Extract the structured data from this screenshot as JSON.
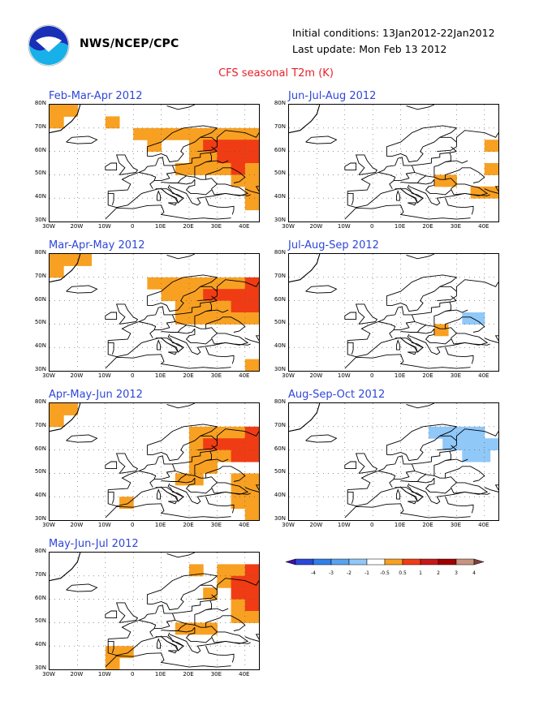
{
  "header": {
    "agency": "NWS/NCEP/CPC",
    "initial_conditions": "Initial conditions: 13Jan2012-22Jan2012",
    "last_update": "Last update: Mon Feb 13 2012",
    "title": "CFS seasonal T2m (K)",
    "logo_icon": "noaa-logo-icon"
  },
  "axes": {
    "lat_labels": [
      "80N",
      "70N",
      "60N",
      "50N",
      "40N",
      "30N"
    ],
    "lon_labels": [
      "30W",
      "20W",
      "10W",
      "0",
      "10E",
      "20E",
      "30E",
      "40E"
    ]
  },
  "colors": {
    "title": "#e8202a",
    "panel_title": "#2f47d8",
    "positive_0_5_1": "#f8a022",
    "positive_1_2": "#f03c14",
    "negative_0_5_1": "#90c8f8"
  },
  "panels": [
    {
      "title": "Feb-Mar-Apr 2012",
      "col": 0,
      "row": 0,
      "cells": [
        [
          -30,
          75,
          "o"
        ],
        [
          -30,
          70,
          "o"
        ],
        [
          -25,
          75,
          "o"
        ],
        [
          -10,
          70,
          "o"
        ],
        [
          0,
          65,
          "o"
        ],
        [
          5,
          65,
          "o"
        ],
        [
          10,
          65,
          "o"
        ],
        [
          15,
          65,
          "o"
        ],
        [
          5,
          60,
          "o"
        ],
        [
          20,
          65,
          "o"
        ],
        [
          25,
          65,
          "o"
        ],
        [
          30,
          65,
          "o"
        ],
        [
          35,
          65,
          "o"
        ],
        [
          40,
          65,
          "o"
        ],
        [
          20,
          60,
          "o"
        ],
        [
          25,
          60,
          "r"
        ],
        [
          30,
          60,
          "r"
        ],
        [
          35,
          60,
          "r"
        ],
        [
          40,
          60,
          "r"
        ],
        [
          20,
          55,
          "o"
        ],
        [
          25,
          55,
          "o"
        ],
        [
          30,
          55,
          "r"
        ],
        [
          35,
          55,
          "r"
        ],
        [
          40,
          55,
          "r"
        ],
        [
          15,
          50,
          "o"
        ],
        [
          20,
          50,
          "o"
        ],
        [
          25,
          50,
          "o"
        ],
        [
          30,
          50,
          "o"
        ],
        [
          35,
          50,
          "r"
        ],
        [
          40,
          50,
          "o"
        ],
        [
          35,
          45,
          "o"
        ],
        [
          40,
          45,
          "o"
        ],
        [
          40,
          35,
          "o"
        ],
        [
          40,
          40,
          "o"
        ]
      ]
    },
    {
      "title": "Jun-Jul-Aug 2012",
      "col": 1,
      "row": 0,
      "cells": [
        [
          40,
          60,
          "o"
        ],
        [
          40,
          50,
          "o"
        ],
        [
          22,
          45,
          "o"
        ],
        [
          25,
          45,
          "o"
        ],
        [
          35,
          40,
          "o"
        ],
        [
          40,
          40,
          "o"
        ]
      ]
    },
    {
      "title": "Mar-Apr-May 2012",
      "col": 0,
      "row": 1,
      "cells": [
        [
          -30,
          75,
          "o"
        ],
        [
          -25,
          75,
          "o"
        ],
        [
          -30,
          70,
          "o"
        ],
        [
          -20,
          75,
          "o"
        ],
        [
          5,
          65,
          "o"
        ],
        [
          10,
          65,
          "o"
        ],
        [
          15,
          65,
          "o"
        ],
        [
          20,
          65,
          "o"
        ],
        [
          25,
          65,
          "o"
        ],
        [
          30,
          65,
          "o"
        ],
        [
          35,
          65,
          "o"
        ],
        [
          40,
          65,
          "r"
        ],
        [
          15,
          60,
          "o"
        ],
        [
          20,
          60,
          "o"
        ],
        [
          25,
          60,
          "r"
        ],
        [
          30,
          60,
          "r"
        ],
        [
          35,
          60,
          "r"
        ],
        [
          40,
          60,
          "r"
        ],
        [
          15,
          55,
          "o"
        ],
        [
          20,
          55,
          "o"
        ],
        [
          25,
          55,
          "o"
        ],
        [
          30,
          55,
          "o"
        ],
        [
          35,
          55,
          "r"
        ],
        [
          40,
          55,
          "r"
        ],
        [
          15,
          50,
          "o"
        ],
        [
          20,
          50,
          "o"
        ],
        [
          25,
          50,
          "o"
        ],
        [
          30,
          50,
          "o"
        ],
        [
          35,
          50,
          "o"
        ],
        [
          40,
          50,
          "o"
        ],
        [
          10,
          60,
          "o"
        ],
        [
          40,
          30,
          "o"
        ]
      ]
    },
    {
      "title": "Jul-Aug-Sep 2012",
      "col": 1,
      "row": 1,
      "cells": [
        [
          32,
          50,
          "b"
        ],
        [
          35,
          50,
          "b"
        ],
        [
          22,
          45,
          "o"
        ]
      ]
    },
    {
      "title": "Apr-May-Jun 2012",
      "col": 0,
      "row": 2,
      "cells": [
        [
          -30,
          75,
          "o"
        ],
        [
          -25,
          75,
          "o"
        ],
        [
          -30,
          70,
          "o"
        ],
        [
          20,
          65,
          "o"
        ],
        [
          25,
          65,
          "o"
        ],
        [
          30,
          65,
          "o"
        ],
        [
          35,
          65,
          "o"
        ],
        [
          40,
          65,
          "r"
        ],
        [
          20,
          60,
          "o"
        ],
        [
          25,
          60,
          "r"
        ],
        [
          30,
          60,
          "r"
        ],
        [
          35,
          60,
          "r"
        ],
        [
          40,
          60,
          "r"
        ],
        [
          20,
          55,
          "o"
        ],
        [
          25,
          55,
          "o"
        ],
        [
          30,
          55,
          "o"
        ],
        [
          35,
          55,
          "r"
        ],
        [
          40,
          55,
          "r"
        ],
        [
          20,
          50,
          "o"
        ],
        [
          25,
          50,
          "o"
        ],
        [
          15,
          45,
          "o"
        ],
        [
          20,
          45,
          "o"
        ],
        [
          35,
          45,
          "o"
        ],
        [
          40,
          45,
          "o"
        ],
        [
          35,
          40,
          "o"
        ],
        [
          40,
          40,
          "o"
        ],
        [
          35,
          35,
          "o"
        ],
        [
          40,
          35,
          "o"
        ],
        [
          40,
          30,
          "o"
        ],
        [
          -5,
          35,
          "o"
        ]
      ]
    },
    {
      "title": "Aug-Sep-Oct 2012",
      "col": 1,
      "row": 2,
      "cells": [
        [
          20,
          65,
          "b"
        ],
        [
          25,
          65,
          "b"
        ],
        [
          30,
          65,
          "b"
        ],
        [
          35,
          65,
          "b"
        ],
        [
          25,
          60,
          "b"
        ],
        [
          30,
          60,
          "b"
        ],
        [
          35,
          60,
          "b"
        ],
        [
          40,
          60,
          "b"
        ],
        [
          32,
          55,
          "b"
        ],
        [
          37,
          55,
          "b"
        ]
      ]
    },
    {
      "title": "May-Jun-Jul 2012",
      "col": 0,
      "row": 3,
      "cells": [
        [
          20,
          70,
          "o"
        ],
        [
          30,
          70,
          "o"
        ],
        [
          35,
          70,
          "o"
        ],
        [
          40,
          70,
          "r"
        ],
        [
          30,
          65,
          "o"
        ],
        [
          35,
          65,
          "r"
        ],
        [
          40,
          65,
          "r"
        ],
        [
          35,
          60,
          "r"
        ],
        [
          40,
          60,
          "r"
        ],
        [
          25,
          60,
          "o"
        ],
        [
          35,
          55,
          "o"
        ],
        [
          40,
          55,
          "r"
        ],
        [
          35,
          50,
          "o"
        ],
        [
          40,
          50,
          "o"
        ],
        [
          15,
          45,
          "o"
        ],
        [
          20,
          45,
          "o"
        ],
        [
          25,
          45,
          "o"
        ],
        [
          -5,
          35,
          "o"
        ],
        [
          -10,
          35,
          "o"
        ],
        [
          -10,
          30,
          "o"
        ]
      ]
    }
  ],
  "colorbar": {
    "labels": [
      "-4",
      "-3",
      "-2",
      "-1",
      "-0.5",
      "0.5",
      "1",
      "2",
      "3",
      "4"
    ],
    "colors": [
      "#4010a8",
      "#2a48d8",
      "#2f80e8",
      "#5aa2f0",
      "#90c8f8",
      "#ffffff",
      "#f8a022",
      "#f03c14",
      "#c81818",
      "#a00000",
      "#c89480",
      "#804040"
    ]
  }
}
